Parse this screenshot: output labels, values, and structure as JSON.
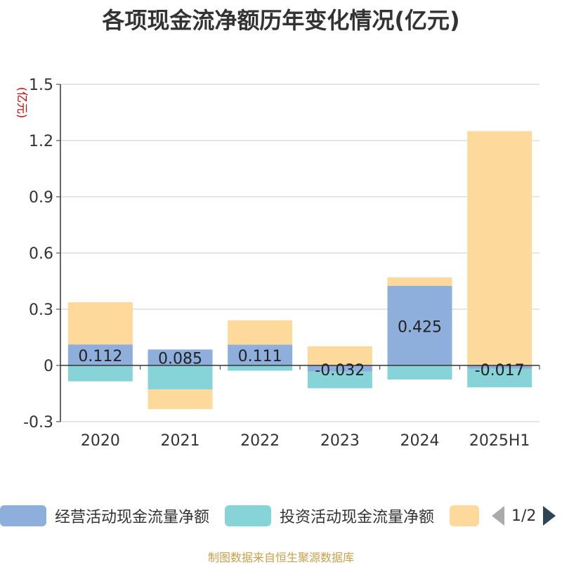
{
  "chart_data": {
    "type": "bar",
    "title": "各项现金流净额历年变化情况(亿元)",
    "ylabel": "(亿元)",
    "ylim": [
      -0.3,
      1.5
    ],
    "yticks": [
      -0.3,
      0,
      0.3,
      0.6,
      0.9,
      1.2,
      1.5
    ],
    "ytick_labels": [
      "-0.3",
      "0",
      "0.3",
      "0.6",
      "0.9",
      "1.2",
      "1.5"
    ],
    "categories": [
      "2020",
      "2021",
      "2022",
      "2023",
      "2024",
      "2025H1"
    ],
    "stacked": true,
    "grid": true,
    "legend_position": "bottom",
    "series": [
      {
        "name": "经营活动现金流量净额",
        "color": "#8eaedb",
        "values": [
          0.112,
          0.085,
          0.111,
          -0.032,
          0.425,
          -0.017
        ],
        "labels": [
          "0.112",
          "0.085",
          "0.111",
          "-0.032",
          "0.425",
          "-0.017"
        ]
      },
      {
        "name": "投资活动现金流量净额",
        "color": "#86d4d8",
        "values": [
          -0.085,
          -0.128,
          -0.028,
          -0.09,
          -0.075,
          -0.1
        ]
      },
      {
        "name": "",
        "color": "#fdd99b",
        "values": [
          0.225,
          -0.105,
          0.13,
          0.102,
          0.045,
          1.25
        ]
      }
    ]
  },
  "legend": {
    "page_indicator": "1/2",
    "prev_icon": "triangle-left-icon",
    "next_icon": "triangle-right-icon"
  },
  "source": "制图数据来自恒生聚源数据库"
}
